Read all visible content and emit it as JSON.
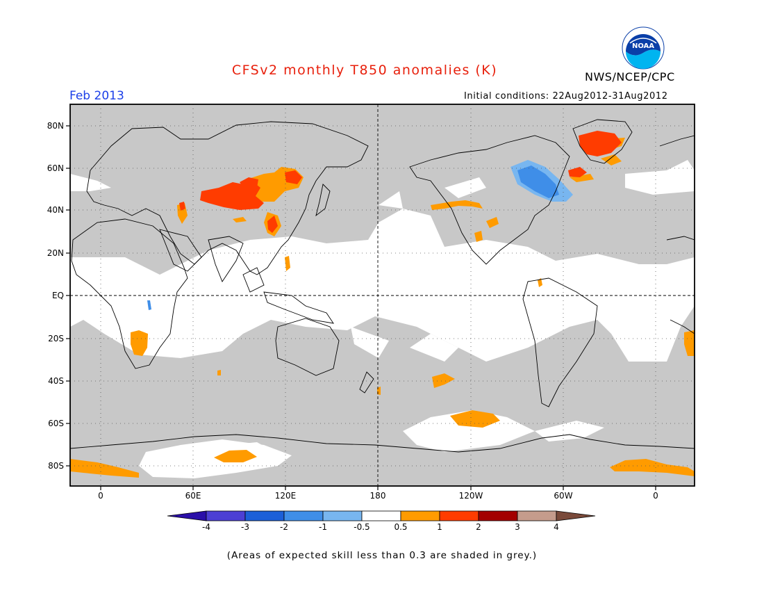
{
  "title": "CFSv2 monthly T850 anomalies (K)",
  "org": "NWS/NCEP/CPC",
  "logo_text": "NOAA",
  "month_label": "Feb 2013",
  "initial_conditions": "Initial conditions: 22Aug2012-31Aug2012",
  "footnote": "(Areas of expected skill less than 0.3 are shaded in grey.)",
  "map": {
    "lat_labels": [
      "80N",
      "60N",
      "40N",
      "20N",
      "EQ",
      "20S",
      "40S",
      "60S",
      "80S"
    ],
    "lon_labels": [
      "0",
      "60E",
      "120E",
      "180",
      "120W",
      "60W",
      "0"
    ],
    "lowskill_color": "#c8c8c8",
    "neutral_color": "#ffffff"
  },
  "colorbar": {
    "ticks": [
      "-4",
      "-3",
      "-2",
      "-1",
      "-0.5",
      "0.5",
      "1",
      "2",
      "3",
      "4"
    ],
    "colors": [
      "#2a0fa8",
      "#4c3fd4",
      "#1c5fd8",
      "#3f8ee8",
      "#78b6f0",
      "#ffffff",
      "#ff9b00",
      "#ff3c00",
      "#a30000",
      "#c59c8c",
      "#7a4a3a"
    ]
  }
}
